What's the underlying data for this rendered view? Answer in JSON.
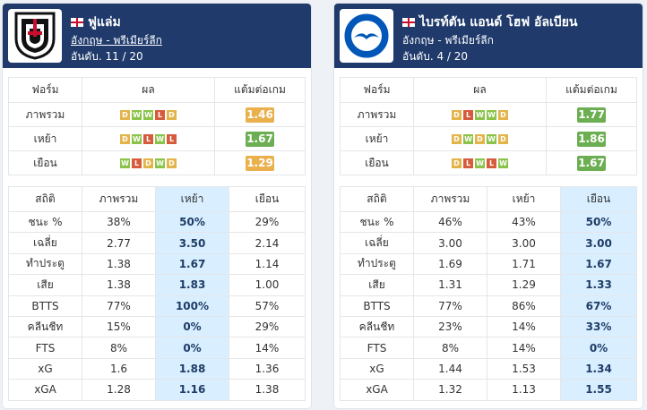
{
  "teams": [
    {
      "name": "ฟูแล่ม",
      "league": "อังกฤษ - พรีเมียร์ลีก",
      "rank": "อันดับ. 11 / 20",
      "form_headers": [
        "ฟอร์ม",
        "ผล",
        "แต้มต่อเกม"
      ],
      "form_rows": [
        {
          "label": "ภาพรวม",
          "results": [
            "D",
            "W",
            "W",
            "L",
            "D"
          ],
          "ppg": "1.46",
          "ppg_color": "amber"
        },
        {
          "label": "เหย้า",
          "results": [
            "D",
            "W",
            "L",
            "W",
            "L"
          ],
          "ppg": "1.67",
          "ppg_color": "green"
        },
        {
          "label": "เยือน",
          "results": [
            "W",
            "L",
            "D",
            "W",
            "D"
          ],
          "ppg": "1.29",
          "ppg_color": "amber"
        }
      ],
      "stats_headers": [
        "สถิติ",
        "ภาพรวม",
        "เหย้า",
        "เยือน"
      ],
      "highlight_col": 2,
      "stats_rows": [
        {
          "label": "ชนะ %",
          "vals": [
            "38%",
            "50%",
            "29%"
          ]
        },
        {
          "label": "เฉลี่ย",
          "vals": [
            "2.77",
            "3.50",
            "2.14"
          ]
        },
        {
          "label": "ทำประตู",
          "vals": [
            "1.38",
            "1.67",
            "1.14"
          ]
        },
        {
          "label": "เสีย",
          "vals": [
            "1.38",
            "1.83",
            "1.00"
          ]
        },
        {
          "label": "BTTS",
          "vals": [
            "77%",
            "100%",
            "57%"
          ]
        },
        {
          "label": "คลีนชีท",
          "vals": [
            "15%",
            "0%",
            "29%"
          ]
        },
        {
          "label": "FTS",
          "vals": [
            "8%",
            "0%",
            "14%"
          ]
        },
        {
          "label": "xG",
          "vals": [
            "1.6",
            "1.88",
            "1.36"
          ]
        },
        {
          "label": "xGA",
          "vals": [
            "1.28",
            "1.16",
            "1.38"
          ]
        }
      ]
    },
    {
      "name": "ไบรท์ตัน แอนด์ โฮฟ อัลเบียน",
      "league": "อังกฤษ - พรีเมียร์ลีก",
      "rank": "อันดับ. 4 / 20",
      "form_headers": [
        "ฟอร์ม",
        "ผล",
        "แต้มต่อเกม"
      ],
      "form_rows": [
        {
          "label": "ภาพรวม",
          "results": [
            "D",
            "L",
            "W",
            "W",
            "D"
          ],
          "ppg": "1.77",
          "ppg_color": "green"
        },
        {
          "label": "เหย้า",
          "results": [
            "D",
            "W",
            "D",
            "W",
            "D"
          ],
          "ppg": "1.86",
          "ppg_color": "green"
        },
        {
          "label": "เยือน",
          "results": [
            "D",
            "L",
            "W",
            "L",
            "W"
          ],
          "ppg": "1.67",
          "ppg_color": "green"
        }
      ],
      "stats_headers": [
        "สถิติ",
        "ภาพรวม",
        "เหย้า",
        "เยือน"
      ],
      "highlight_col": 3,
      "stats_rows": [
        {
          "label": "ชนะ %",
          "vals": [
            "46%",
            "43%",
            "50%"
          ]
        },
        {
          "label": "เฉลี่ย",
          "vals": [
            "3.00",
            "3.00",
            "3.00"
          ]
        },
        {
          "label": "ทำประตู",
          "vals": [
            "1.69",
            "1.71",
            "1.67"
          ]
        },
        {
          "label": "เสีย",
          "vals": [
            "1.31",
            "1.29",
            "1.33"
          ]
        },
        {
          "label": "BTTS",
          "vals": [
            "77%",
            "86%",
            "67%"
          ]
        },
        {
          "label": "คลีนชีท",
          "vals": [
            "23%",
            "14%",
            "33%"
          ]
        },
        {
          "label": "FTS",
          "vals": [
            "8%",
            "14%",
            "0%"
          ]
        },
        {
          "label": "xG",
          "vals": [
            "1.44",
            "1.53",
            "1.34"
          ]
        },
        {
          "label": "xGA",
          "vals": [
            "1.32",
            "1.13",
            "1.55"
          ]
        }
      ]
    }
  ],
  "colors": {
    "header_bg": "#1f3a6b",
    "win": "#e2b44a",
    "draw": "#e2b44a",
    "loss": "#d65a3c",
    "ppg_amber": "#e9b04c",
    "ppg_green": "#6cae52",
    "highlight": "#d9efff"
  },
  "icons": {
    "team0_logo": "fulham-crest-icon",
    "team1_logo": "brighton-crest-icon",
    "flag": "england-flag-icon"
  }
}
